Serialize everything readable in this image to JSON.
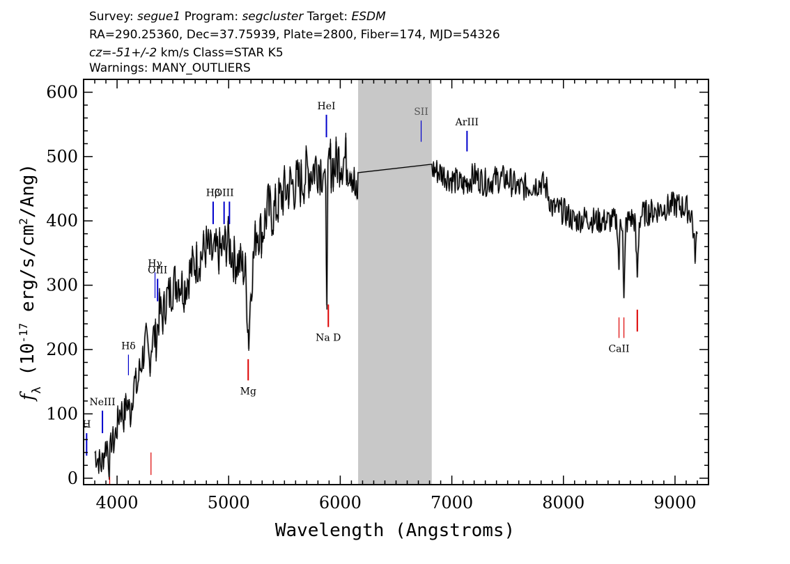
{
  "header": {
    "line1": [
      {
        "text": "Survey: ",
        "italic": false
      },
      {
        "text": "segue1",
        "italic": true
      },
      {
        "text": " Program: ",
        "italic": false
      },
      {
        "text": "segcluster",
        "italic": true
      },
      {
        "text": " Target: ",
        "italic": false
      },
      {
        "text": "ESDM",
        "italic": true
      }
    ],
    "line2": "RA=290.25360, Dec=37.75939, Plate=2800, Fiber=174, MJD=54326",
    "line3": [
      {
        "text": "cz=-51+/-2",
        "italic": true
      },
      {
        "text": " km/s Class=STAR K5",
        "italic": false
      }
    ],
    "line4": "Warnings: MANY_OUTLIERS"
  },
  "colors": {
    "spectrum": "#000000",
    "error_band": "#bdbdbd",
    "masked_region": "#c8c8c8",
    "emission_line": "#0000cc",
    "absorption_line": "#dd0000",
    "background": "#ffffff"
  },
  "chart_data": {
    "type": "line",
    "title": "",
    "xlabel": "Wavelength (Angstroms)",
    "ylabel_parts": {
      "f": "f",
      "sub": "λ",
      "pre": " (10",
      "exp": "-17",
      "mid": " erg/s/cm",
      "exp2": "2",
      "post": "/Ang)"
    },
    "xlim": [
      3700,
      9300
    ],
    "ylim": [
      -10,
      620
    ],
    "xticks": [
      4000,
      5000,
      6000,
      7000,
      8000,
      9000
    ],
    "xtick_labels": [
      "4000",
      "5000",
      "6000",
      "7000",
      "8000",
      "9000"
    ],
    "yticks": [
      0,
      100,
      200,
      300,
      400,
      500,
      600
    ],
    "ytick_labels": [
      "0",
      "100",
      "200",
      "300",
      "400",
      "500",
      "600"
    ],
    "masked_region": [
      6160,
      6820
    ],
    "series": [
      {
        "x": [
          3800,
          3830,
          3860,
          3890,
          3910,
          3930,
          3950,
          3970,
          4000,
          4030,
          4060,
          4090,
          4120,
          4150,
          4180,
          4200,
          4230,
          4260,
          4290,
          4320,
          4350,
          4380,
          4410,
          4440,
          4470,
          4500,
          4550,
          4600,
          4650,
          4700,
          4750,
          4800,
          4850,
          4900,
          4950,
          4990,
          5050,
          5100,
          5150,
          5170,
          5180,
          5200,
          5250,
          5300,
          5350,
          5400,
          5450,
          5500,
          5550,
          5600,
          5650,
          5700,
          5750,
          5800,
          5850,
          5870,
          5880,
          5890,
          5900,
          5950,
          6000,
          6050,
          6100,
          6150,
          6160,
          6820,
          6830,
          6900,
          7000,
          7100,
          7200,
          7300,
          7400,
          7500,
          7600,
          7700,
          7800,
          7850,
          7900,
          8000,
          8100,
          8200,
          8300,
          8400,
          8480,
          8498,
          8510,
          8530,
          8542,
          8560,
          8600,
          8640,
          8662,
          8680,
          8700,
          8800,
          8900,
          9000,
          9100,
          9150,
          9180,
          9200
        ],
        "y": [
          40,
          30,
          20,
          45,
          55,
          20,
          60,
          55,
          80,
          110,
          95,
          120,
          100,
          150,
          140,
          165,
          190,
          210,
          180,
          225,
          215,
          260,
          250,
          280,
          285,
          300,
          310,
          295,
          320,
          335,
          345,
          360,
          345,
          350,
          355,
          370,
          340,
          335,
          320,
          250,
          215,
          300,
          390,
          380,
          420,
          410,
          430,
          445,
          455,
          455,
          460,
          475,
          480,
          490,
          480,
          420,
          300,
          450,
          490,
          485,
          500,
          495,
          490,
          420,
          475,
          477,
          480,
          475,
          465,
          455,
          470,
          460,
          465,
          465,
          450,
          455,
          460,
          450,
          420,
          415,
          400,
          405,
          400,
          400,
          400,
          330,
          400,
          400,
          275,
          395,
          405,
          400,
          315,
          400,
          410,
          415,
          420,
          425,
          420,
          410,
          350,
          380
        ]
      }
    ],
    "spectral_lines": [
      {
        "label": "HeI",
        "wavelength": 5876,
        "type": "emission",
        "y_low": 530,
        "y_high": 565
      },
      {
        "label": "SII",
        "wavelength": 6725,
        "type": "emission",
        "y_low": 523,
        "y_high": 556
      },
      {
        "label": "ArIII",
        "wavelength": 7136,
        "type": "emission",
        "y_low": 508,
        "y_high": 540
      },
      {
        "label": "Hβ",
        "wavelength": 4861,
        "type": "emission",
        "y_low": 395,
        "y_high": 430
      },
      {
        "label": "OIII",
        "wavelength": 4959,
        "type": "emission",
        "y_low": 395,
        "y_high": 430
      },
      {
        "label": "",
        "wavelength": 5007,
        "type": "emission",
        "y_low": 395,
        "y_high": 430
      },
      {
        "label": "Hγ",
        "wavelength": 4340,
        "type": "emission",
        "y_low": 280,
        "y_high": 320
      },
      {
        "label": "OIII",
        "wavelength": 4363,
        "type": "emission",
        "y_low": 275,
        "y_high": 310
      },
      {
        "label": "Hδ",
        "wavelength": 4102,
        "type": "emission",
        "y_low": 160,
        "y_high": 192
      },
      {
        "label": "NeIII",
        "wavelength": 3869,
        "type": "emission",
        "y_low": 70,
        "y_high": 105
      },
      {
        "label": "H",
        "wavelength": 3727,
        "type": "emission",
        "y_low": 35,
        "y_high": 70
      },
      {
        "label": "Na D",
        "wavelength": 5893,
        "type": "absorption",
        "y_low": 235,
        "y_high": 270
      },
      {
        "label": "Mg",
        "wavelength": 5175,
        "type": "absorption",
        "y_low": 152,
        "y_high": 185
      },
      {
        "label": "CaII",
        "wavelength": 8498,
        "type": "absorption",
        "y_low": 218,
        "y_high": 250
      },
      {
        "label": "",
        "wavelength": 8542,
        "type": "absorption",
        "y_low": 218,
        "y_high": 250
      },
      {
        "label": "",
        "wavelength": 8662,
        "type": "absorption",
        "y_low": 228,
        "y_high": 262
      },
      {
        "label": "",
        "wavelength": 4304,
        "type": "absorption",
        "y_low": 5,
        "y_high": 40
      },
      {
        "label": "",
        "wavelength": 3934,
        "type": "absorption",
        "y_low": -10,
        "y_high": 2
      }
    ]
  }
}
